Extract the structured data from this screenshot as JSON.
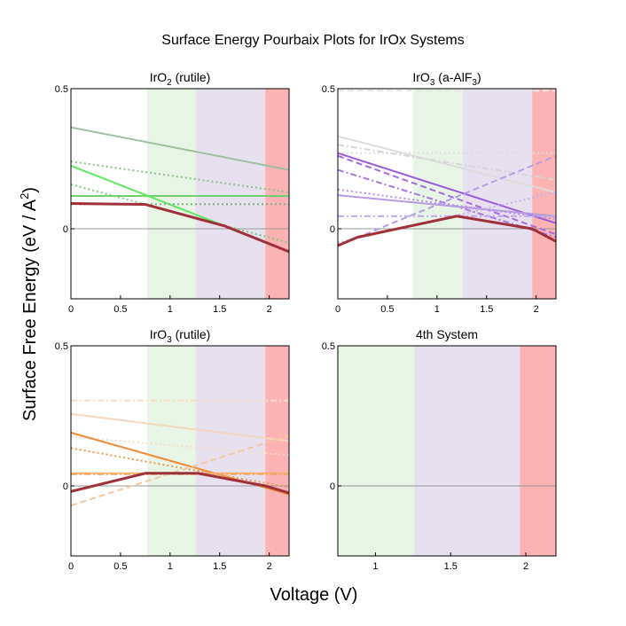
{
  "figure": {
    "title": "Surface Energy Pourbaix Plots for IrOx Systems",
    "xlabel": "Voltage (V)",
    "ylabel_main": "Surface Free Energy (eV / A",
    "ylabel_sup": "2",
    "ylabel_close": ")"
  },
  "chart_data": [
    {
      "type": "line",
      "title_main": "IrO",
      "title_sub": "2",
      "title_rest": " (rutile)",
      "xlim": [
        0,
        2.2
      ],
      "ylim": [
        -0.25,
        0.5
      ],
      "xticks": [
        0,
        0.5,
        1,
        1.5,
        2
      ],
      "xtick_labels": [
        "0",
        "0.5",
        "1",
        "1.5",
        "2"
      ],
      "ytick_labels": [
        {
          "value": 0.5,
          "label": "0.5"
        },
        {
          "value": 0,
          "label": "0"
        }
      ],
      "regions": [
        {
          "x0": 0.77,
          "x1": 1.26,
          "color": "#e8f4e5"
        },
        {
          "x0": 1.26,
          "x1": 1.96,
          "color": "#e6e0ef"
        },
        {
          "x0": 1.96,
          "x1": 2.2,
          "color": "#fcb3b3"
        }
      ],
      "series": [
        {
          "points": [
            [
              0,
              0.362
            ],
            [
              2.2,
              0.21
            ]
          ],
          "color": "#9fbf9f",
          "dash": "solid",
          "width": 2
        },
        {
          "points": [
            [
              0,
              0.117
            ],
            [
              2.2,
              0.117
            ]
          ],
          "color": "#70d070",
          "dash": "solid",
          "width": 2
        },
        {
          "points": [
            [
              0,
              0.225
            ],
            [
              2.2,
              -0.08
            ]
          ],
          "color": "#5ee85e",
          "dash": "solid",
          "width": 2
        },
        {
          "points": [
            [
              0,
              0.24
            ],
            [
              2.2,
              0.13
            ]
          ],
          "color": "#8fbf8f",
          "dash": "dot",
          "width": 2
        },
        {
          "points": [
            [
              0,
              0.158
            ],
            [
              2.2,
              -0.05
            ]
          ],
          "color": "#7ccc7c",
          "dash": "dot",
          "width": 2
        },
        {
          "points": [
            [
              0,
              0.088
            ],
            [
              2.2,
              0.088
            ]
          ],
          "color": "#7fb27f",
          "dash": "dot",
          "width": 2
        },
        {
          "points": [
            [
              0,
              0.09
            ],
            [
              0.75,
              0.087
            ],
            [
              1.55,
              0.01
            ],
            [
              2.2,
              -0.082
            ]
          ],
          "color": "#a0303a",
          "dash": "solid",
          "width": 3
        }
      ]
    },
    {
      "type": "line",
      "title_main": "IrO",
      "title_sub": "3",
      "title_rest": " (a-AlF",
      "title_sub2": "3",
      "title_rest2": ")",
      "xlim": [
        0,
        2.2
      ],
      "ylim": [
        -0.25,
        0.5
      ],
      "xticks": [
        0,
        0.5,
        1,
        1.5,
        2
      ],
      "xtick_labels": [
        "0",
        "0.5",
        "1",
        "1.5",
        "2"
      ],
      "ytick_labels": [
        {
          "value": 0.5,
          "label": "0.5"
        },
        {
          "value": 0,
          "label": "0"
        }
      ],
      "regions": [
        {
          "x0": 0.76,
          "x1": 1.26,
          "color": "#e8f4e5"
        },
        {
          "x0": 1.26,
          "x1": 1.96,
          "color": "#e6e0ef"
        },
        {
          "x0": 1.96,
          "x1": 2.2,
          "color": "#fcb3b3"
        }
      ],
      "series": [
        {
          "points": [
            [
              0,
              0.493
            ],
            [
              2.2,
              0.493
            ]
          ],
          "color": "#e6e6e6",
          "dash": "dash",
          "width": 2
        },
        {
          "points": [
            [
              0,
              0.33
            ],
            [
              2.2,
              0.13
            ]
          ],
          "color": "#dcdcdc",
          "dash": "solid",
          "width": 2
        },
        {
          "points": [
            [
              0,
              0.3
            ],
            [
              2.2,
              0.175
            ]
          ],
          "color": "#d6d6d6",
          "dash": "dashdot",
          "width": 2
        },
        {
          "points": [
            [
              0,
              0.27
            ],
            [
              2.2,
              0.27
            ]
          ],
          "color": "#dddddd",
          "dash": "dot",
          "width": 2
        },
        {
          "points": [
            [
              0,
              0.27
            ],
            [
              2.2,
              0.02
            ]
          ],
          "color": "#9b5bdc",
          "dash": "solid",
          "width": 2
        },
        {
          "points": [
            [
              0,
              0.26
            ],
            [
              2.2,
              -0.02
            ]
          ],
          "color": "#a86ae0",
          "dash": "dash",
          "width": 2
        },
        {
          "points": [
            [
              0,
              0.21
            ],
            [
              2.2,
              -0.03
            ]
          ],
          "color": "#a878df",
          "dash": "dashdot",
          "width": 2
        },
        {
          "points": [
            [
              0,
              0.14
            ],
            [
              2.2,
              0.035
            ]
          ],
          "color": "#b490e4",
          "dash": "dot",
          "width": 2
        },
        {
          "points": [
            [
              0,
              0.12
            ],
            [
              2.2,
              0.045
            ]
          ],
          "color": "#b89ae4",
          "dash": "solid",
          "width": 2
        },
        {
          "points": [
            [
              0,
              0.045
            ],
            [
              2.2,
              0.045
            ]
          ],
          "color": "#c0a8ea",
          "dash": "dashdot",
          "width": 2
        },
        {
          "points": [
            [
              0,
              -0.06
            ],
            [
              2.2,
              0.26
            ]
          ],
          "color": "#b59de6",
          "dash": "dash",
          "width": 2
        },
        {
          "points": [
            [
              0,
              -0.05
            ],
            [
              2.2,
              0.13
            ]
          ],
          "color": "#c4b4ea",
          "dash": "dot",
          "width": 2
        },
        {
          "points": [
            [
              0,
              -0.06
            ],
            [
              0.2,
              -0.03
            ],
            [
              1.2,
              0.045
            ],
            [
              1.96,
              0.0
            ],
            [
              2.2,
              -0.045
            ]
          ],
          "color": "#a0303a",
          "dash": "solid",
          "width": 3
        }
      ]
    },
    {
      "type": "line",
      "title_main": "IrO",
      "title_sub": "3",
      "title_rest": " (rutile)",
      "xlim": [
        0,
        2.2
      ],
      "ylim": [
        -0.25,
        0.5
      ],
      "xticks": [
        0,
        0.5,
        1,
        1.5,
        2
      ],
      "xtick_labels": [
        "0",
        "0.5",
        "1",
        "1.5",
        "2"
      ],
      "ytick_labels": [
        {
          "value": 0.5,
          "label": "0.5"
        },
        {
          "value": 0,
          "label": "0"
        }
      ],
      "regions": [
        {
          "x0": 0.77,
          "x1": 1.26,
          "color": "#e8f4e5"
        },
        {
          "x0": 1.26,
          "x1": 1.96,
          "color": "#e6e0ef"
        },
        {
          "x0": 1.96,
          "x1": 2.2,
          "color": "#fcb3b3"
        }
      ],
      "series": [
        {
          "points": [
            [
              0,
              0.305
            ],
            [
              2.2,
              0.305
            ]
          ],
          "color": "#f8dcc4",
          "dash": "dashdot",
          "width": 2
        },
        {
          "points": [
            [
              0,
              0.257
            ],
            [
              2.2,
              0.16
            ]
          ],
          "color": "#f3d6bc",
          "dash": "solid",
          "width": 2
        },
        {
          "points": [
            [
              0,
              0.175
            ],
            [
              2.2,
              0.11
            ]
          ],
          "color": "#f6dcc6",
          "dash": "dot",
          "width": 2
        },
        {
          "points": [
            [
              0,
              0.19
            ],
            [
              2.2,
              -0.03
            ]
          ],
          "color": "#f08a30",
          "dash": "solid",
          "width": 2
        },
        {
          "points": [
            [
              0,
              0.19
            ],
            [
              2.2,
              -0.03
            ]
          ],
          "color": "#f09040",
          "dash": "dash",
          "width": 2
        },
        {
          "points": [
            [
              0,
              0.135
            ],
            [
              2.2,
              -0.005
            ]
          ],
          "color": "#ee9a4c",
          "dash": "dot",
          "width": 2
        },
        {
          "points": [
            [
              0,
              0.045
            ],
            [
              2.2,
              0.045
            ]
          ],
          "color": "#f5b070",
          "dash": "solid",
          "width": 2
        },
        {
          "points": [
            [
              0,
              0.042
            ],
            [
              2.2,
              0.042
            ]
          ],
          "color": "#f2a860",
          "dash": "dashdot",
          "width": 2
        },
        {
          "points": [
            [
              0,
              -0.07
            ],
            [
              2.2,
              0.18
            ]
          ],
          "color": "#f5c8a0",
          "dash": "dash",
          "width": 2
        },
        {
          "points": [
            [
              0,
              -0.02
            ],
            [
              0.75,
              0.045
            ],
            [
              1.28,
              0.045
            ],
            [
              1.96,
              0.0
            ],
            [
              2.2,
              -0.025
            ]
          ],
          "color": "#a0303a",
          "dash": "solid",
          "width": 3
        }
      ]
    },
    {
      "type": "line",
      "title_main": "4th System",
      "xlim": [
        0.75,
        2.2
      ],
      "ylim": [
        -0.25,
        0.5
      ],
      "xticks": [
        1,
        1.5,
        2
      ],
      "xtick_labels": [
        "1",
        "1.5",
        "2"
      ],
      "ytick_labels": [
        {
          "value": 0.5,
          "label": "0.5"
        },
        {
          "value": 0,
          "label": "0"
        }
      ],
      "regions": [
        {
          "x0": 0.75,
          "x1": 1.26,
          "color": "#e8f4e5"
        },
        {
          "x0": 1.26,
          "x1": 1.96,
          "color": "#e6e0ef"
        },
        {
          "x0": 1.96,
          "x1": 2.2,
          "color": "#fcb3b3"
        }
      ],
      "series": []
    }
  ]
}
